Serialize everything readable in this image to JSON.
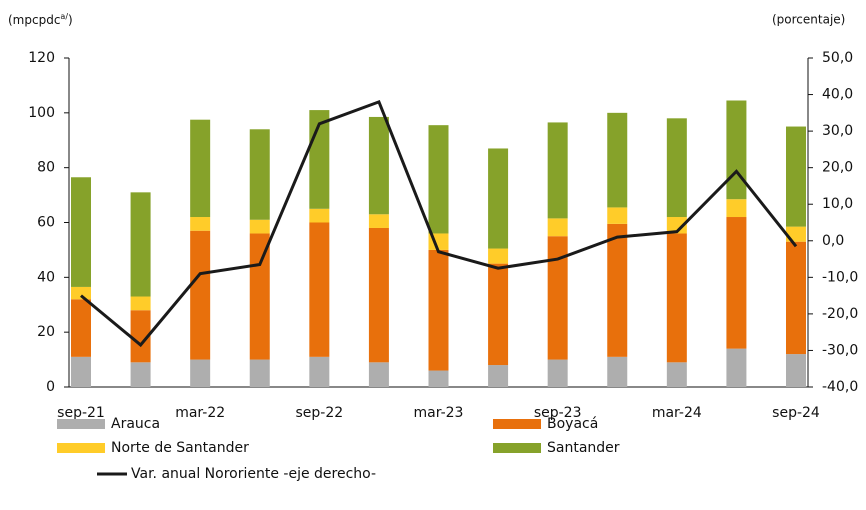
{
  "chart_data": {
    "type": "stacked-bar-line",
    "y_label": {
      "text": "(mpcpdc",
      "sup": "a/",
      "close": ")"
    },
    "y2_label": "(porcentaje)",
    "categories": [
      "sep-21",
      null,
      "mar-22",
      null,
      "sep-22",
      null,
      "mar-23",
      null,
      "sep-23",
      null,
      "mar-24",
      null,
      "sep-24"
    ],
    "series": [
      {
        "name": "Arauca",
        "color": "#aeaeae",
        "values": [
          11,
          9,
          10,
          10,
          11,
          9,
          6,
          8,
          10,
          11,
          9,
          14,
          12
        ]
      },
      {
        "name": "Boyacá",
        "color": "#e8700c",
        "values": [
          21,
          19,
          47,
          46,
          49,
          49,
          44,
          37,
          45,
          48.5,
          47,
          48,
          41
        ]
      },
      {
        "name": "Norte de Santander",
        "color": "#ffcc29",
        "values": [
          4.5,
          5,
          5,
          5,
          5,
          5,
          6,
          5.5,
          6.5,
          6,
          6,
          6.5,
          5.5
        ]
      },
      {
        "name": "Santander",
        "color": "#86a22a",
        "values": [
          40,
          38,
          35.5,
          33,
          36,
          35.5,
          39.5,
          36.5,
          35,
          34.5,
          36,
          36,
          36.5
        ]
      },
      {
        "name": "Var. anual Nororiente -eje derecho-",
        "color": "#1a1a1a",
        "type": "line",
        "axis": "y2",
        "values": [
          -15,
          -28.5,
          -9,
          -6.5,
          32,
          38,
          -3,
          -7.5,
          -5,
          1,
          2.5,
          19,
          -1.5
        ]
      }
    ],
    "ylim": [
      0,
      120
    ],
    "yticks": [
      0,
      20,
      40,
      60,
      80,
      100,
      120
    ],
    "y2lim": [
      -40,
      50
    ],
    "y2ticks": [
      {
        "value": -40,
        "label": "-40,0"
      },
      {
        "value": -30,
        "label": "-30,0"
      },
      {
        "value": -20,
        "label": "-20,0"
      },
      {
        "value": -10,
        "label": "-10,0"
      },
      {
        "value": 0,
        "label": "0,0"
      },
      {
        "value": 10,
        "label": "10,0"
      },
      {
        "value": 20,
        "label": "20,0"
      },
      {
        "value": 30,
        "label": "30,0"
      },
      {
        "value": 40,
        "label": "40,0"
      },
      {
        "value": 50,
        "label": "50,0"
      }
    ],
    "grid": false
  }
}
